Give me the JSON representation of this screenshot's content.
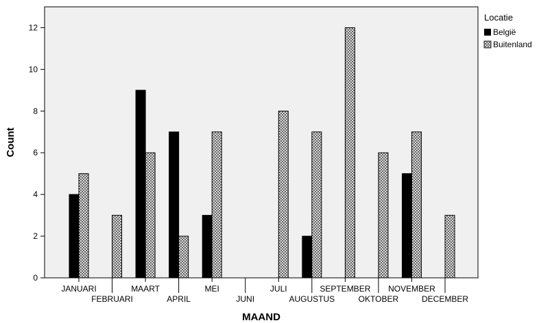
{
  "chart_data": {
    "type": "bar",
    "xlabel": "MAAND",
    "ylabel": "Count",
    "ylim": [
      0,
      13
    ],
    "yticks": [
      0,
      2,
      4,
      6,
      8,
      10,
      12
    ],
    "categories": [
      "JANUARI",
      "FEBRUARI",
      "MAART",
      "APRIL",
      "MEI",
      "JUNI",
      "JULI",
      "AUGUSTUS",
      "SEPTEMBER",
      "OKTOBER",
      "NOVEMBER",
      "DECEMBER"
    ],
    "legend_title": "Locatie",
    "legend_position": "right",
    "series": [
      {
        "name": "België",
        "values": [
          4,
          0,
          9,
          7,
          3,
          0,
          0,
          2,
          0,
          0,
          5,
          0
        ],
        "color": "#000000",
        "pattern": "solid"
      },
      {
        "name": "Buitenland",
        "values": [
          5,
          3,
          6,
          2,
          7,
          0,
          8,
          7,
          12,
          6,
          7,
          3
        ],
        "color": "#b0b0b0",
        "pattern": "crosshatch"
      }
    ],
    "plot_background": "#f0f0f0",
    "grid": false
  }
}
